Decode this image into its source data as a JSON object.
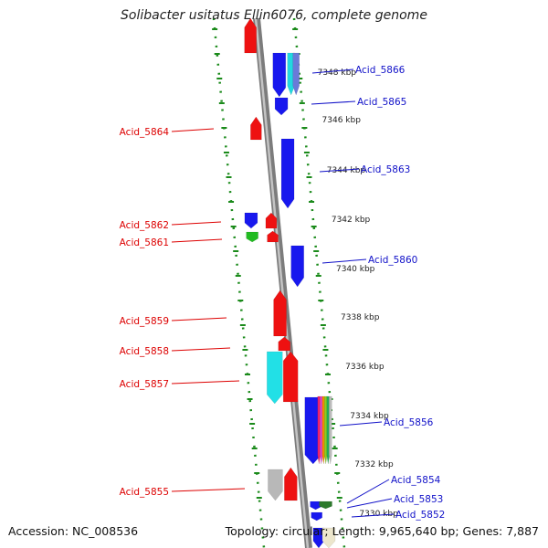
{
  "title": "Solibacter usitatus Ellin6076, complete genome",
  "footer": {
    "accession": "Accession: NC_008536",
    "summary": "Topology: circular; Length: 9,965,640 bp; Genes: 7,887"
  },
  "colors": {
    "backbone": "#9a9a9a",
    "dotted_guides": "#1a8a1a",
    "label_left": "#dd0000",
    "label_right": "#1010c8",
    "scale_text": "#222222"
  },
  "scale_labels": [
    "7348 kbp",
    "7346 kbp",
    "7344 kbp",
    "7342 kbp",
    "7340 kbp",
    "7338 kbp",
    "7336 kbp",
    "7334 kbp",
    "7332 kbp",
    "7330 kbp"
  ],
  "gene_labels_left": [
    "Acid_5864",
    "Acid_5862",
    "Acid_5861",
    "Acid_5859",
    "Acid_5858",
    "Acid_5857",
    "Acid_5855"
  ],
  "gene_labels_right": [
    "Acid_5866",
    "Acid_5865",
    "Acid_5863",
    "Acid_5860",
    "Acid_5856",
    "Acid_5854",
    "Acid_5853",
    "Acid_5852"
  ]
}
